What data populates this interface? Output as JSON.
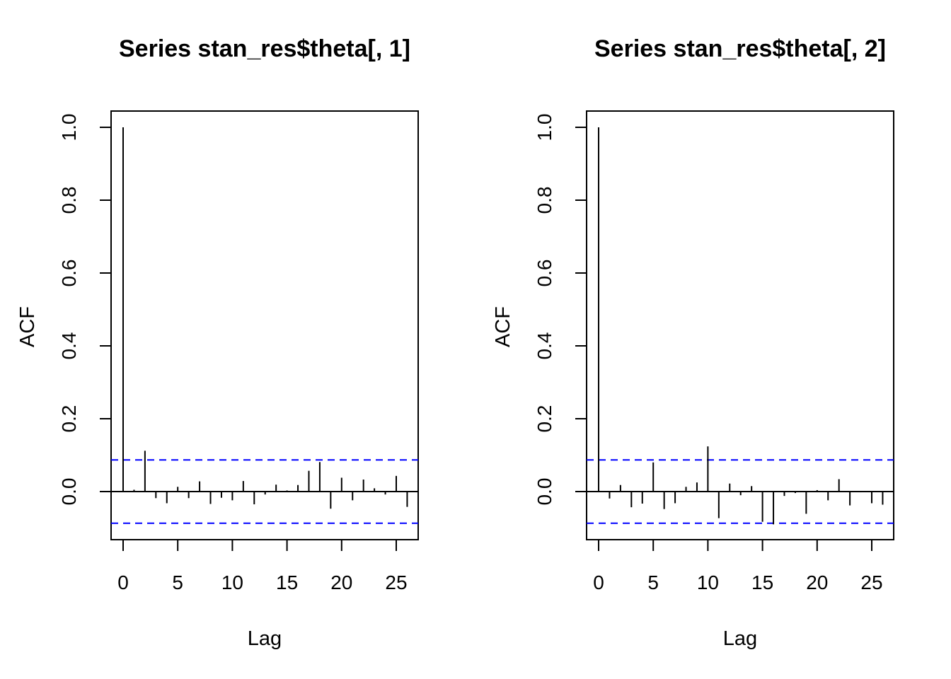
{
  "chart_data": [
    {
      "type": "bar",
      "title": "Series  stan_res$theta[, 1]",
      "xlabel": "Lag",
      "ylabel": "ACF",
      "xlim": [
        0,
        26
      ],
      "ylim": [
        -0.1,
        1.0
      ],
      "xticks": [
        "0",
        "5",
        "10",
        "15",
        "20",
        "25"
      ],
      "yticks": [
        "0.0",
        "0.2",
        "0.4",
        "0.6",
        "0.8",
        "1.0"
      ],
      "confidence_bound": 0.087,
      "bound_color": "#0000ff",
      "x": [
        0,
        1,
        2,
        3,
        4,
        5,
        6,
        7,
        8,
        9,
        10,
        11,
        12,
        13,
        14,
        15,
        16,
        17,
        18,
        19,
        20,
        21,
        22,
        23,
        24,
        25,
        26
      ],
      "values": [
        1.0,
        0.005,
        0.112,
        -0.018,
        -0.032,
        0.013,
        -0.018,
        0.028,
        -0.034,
        -0.017,
        -0.024,
        0.029,
        -0.035,
        -0.008,
        0.019,
        0.003,
        0.018,
        0.057,
        0.081,
        -0.047,
        0.038,
        -0.024,
        0.033,
        0.009,
        -0.008,
        0.043,
        -0.042
      ]
    },
    {
      "type": "bar",
      "title": "Series  stan_res$theta[, 2]",
      "xlabel": "Lag",
      "ylabel": "ACF",
      "xlim": [
        0,
        26
      ],
      "ylim": [
        -0.1,
        1.0
      ],
      "xticks": [
        "0",
        "5",
        "10",
        "15",
        "20",
        "25"
      ],
      "yticks": [
        "0.0",
        "0.2",
        "0.4",
        "0.6",
        "0.8",
        "1.0"
      ],
      "confidence_bound": 0.087,
      "bound_color": "#0000ff",
      "x": [
        0,
        1,
        2,
        3,
        4,
        5,
        6,
        7,
        8,
        9,
        10,
        11,
        12,
        13,
        14,
        15,
        16,
        17,
        18,
        19,
        20,
        21,
        22,
        23,
        24,
        25,
        26
      ],
      "values": [
        1.0,
        -0.019,
        0.018,
        -0.043,
        -0.033,
        0.08,
        -0.048,
        -0.032,
        0.013,
        0.025,
        0.124,
        -0.073,
        0.022,
        -0.01,
        0.015,
        -0.083,
        -0.09,
        -0.012,
        -0.004,
        -0.061,
        0.004,
        -0.024,
        0.034,
        -0.038,
        -0.002,
        -0.032,
        -0.036
      ]
    }
  ]
}
